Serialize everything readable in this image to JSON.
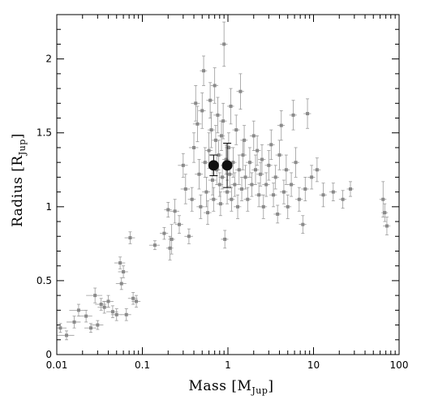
{
  "chart_data": {
    "type": "scatter",
    "x_scale": "log",
    "y_scale": "linear",
    "xlim": [
      0.01,
      100
    ],
    "ylim": [
      0,
      2.3
    ],
    "grid": false,
    "xlabel": {
      "main": "Mass [M",
      "sub": "Jup",
      "close": "]"
    },
    "ylabel": {
      "main": "Radius [R",
      "sub": "Jup",
      "close": "]"
    },
    "x_tick_labels": [
      {
        "value": 0.01,
        "label": "0.01"
      },
      {
        "value": 0.1,
        "label": "0.1"
      },
      {
        "value": 1,
        "label": "1"
      },
      {
        "value": 10,
        "label": "10"
      },
      {
        "value": 100,
        "label": "100"
      }
    ],
    "y_tick_labels": [
      {
        "value": 0,
        "label": "0"
      },
      {
        "value": 0.5,
        "label": "0.5"
      },
      {
        "value": 1,
        "label": "1"
      },
      {
        "value": 1.5,
        "label": "1.5"
      },
      {
        "value": 2,
        "label": "2"
      }
    ],
    "colors": {
      "points": "#8a8a8a",
      "errorbars": "#9a9a9a",
      "highlight": "#111111"
    },
    "series": [
      {
        "marker": "small-gray-square-with-errorbars",
        "points": [
          [
            0.011,
            0.18,
            0.002,
            0.03
          ],
          [
            0.013,
            0.13,
            0.003,
            0.03
          ],
          [
            0.016,
            0.22,
            0.003,
            0.04
          ],
          [
            0.018,
            0.3,
            0.004,
            0.04
          ],
          [
            0.022,
            0.26,
            0.004,
            0.04
          ],
          [
            0.025,
            0.18,
            0.004,
            0.03
          ],
          [
            0.028,
            0.4,
            0.006,
            0.05
          ],
          [
            0.03,
            0.2,
            0.005,
            0.03
          ],
          [
            0.033,
            0.34,
            0.005,
            0.04
          ],
          [
            0.036,
            0.32,
            0.006,
            0.04
          ],
          [
            0.04,
            0.36,
            0.006,
            0.04
          ],
          [
            0.045,
            0.29,
            0.007,
            0.04
          ],
          [
            0.05,
            0.27,
            0.007,
            0.04
          ],
          [
            0.055,
            0.62,
            0.008,
            0.04
          ],
          [
            0.06,
            0.56,
            0.008,
            0.04
          ],
          [
            0.057,
            0.48,
            0.008,
            0.04
          ],
          [
            0.065,
            0.27,
            0.009,
            0.04
          ],
          [
            0.072,
            0.79,
            0.01,
            0.04
          ],
          [
            0.078,
            0.38,
            0.01,
            0.04
          ],
          [
            0.085,
            0.36,
            0.01,
            0.04
          ],
          [
            0.14,
            0.74,
            0.02,
            0.03
          ],
          [
            0.18,
            0.82,
            0.02,
            0.04
          ],
          [
            0.21,
            0.72,
            0.02,
            0.08
          ],
          [
            0.22,
            0.78,
            0.02,
            0.1
          ],
          [
            0.2,
            0.98,
            0.02,
            0.05
          ],
          [
            0.24,
            0.97,
            0.03,
            0.08
          ],
          [
            0.27,
            0.88,
            0.03,
            0.06
          ],
          [
            0.3,
            1.28,
            0.04,
            0.08
          ],
          [
            0.32,
            1.12,
            0.04,
            0.1
          ],
          [
            0.35,
            0.8,
            0.04,
            0.05
          ],
          [
            0.38,
            1.05,
            0.04,
            0.08
          ],
          [
            0.4,
            1.4,
            0.05,
            0.1
          ],
          [
            0.42,
            1.7,
            0.05,
            0.12
          ],
          [
            0.44,
            1.56,
            0.05,
            0.12
          ],
          [
            0.46,
            1.22,
            0.05,
            0.1
          ],
          [
            0.48,
            1.0,
            0.05,
            0.08
          ],
          [
            0.5,
            1.65,
            0.05,
            0.12
          ],
          [
            0.52,
            1.92,
            0.05,
            0.1
          ],
          [
            0.54,
            1.3,
            0.05,
            0.1
          ],
          [
            0.56,
            1.1,
            0.06,
            0.1
          ],
          [
            0.58,
            0.96,
            0.06,
            0.08
          ],
          [
            0.6,
            1.38,
            0.06,
            0.12
          ],
          [
            0.62,
            1.72,
            0.06,
            0.12
          ],
          [
            0.64,
            1.52,
            0.06,
            0.12
          ],
          [
            0.66,
            1.18,
            0.07,
            0.1
          ],
          [
            0.68,
            1.05,
            0.07,
            0.08
          ],
          [
            0.7,
            1.82,
            0.07,
            0.12
          ],
          [
            0.72,
            1.45,
            0.07,
            0.1
          ],
          [
            0.74,
            1.25,
            0.07,
            0.1
          ],
          [
            0.76,
            1.62,
            0.08,
            0.12
          ],
          [
            0.78,
            1.35,
            0.08,
            0.1
          ],
          [
            0.8,
            1.15,
            0.08,
            0.08
          ],
          [
            0.82,
            1.02,
            0.08,
            0.08
          ],
          [
            0.84,
            1.48,
            0.08,
            0.1
          ],
          [
            0.86,
            1.2,
            0.08,
            0.08
          ],
          [
            0.88,
            1.58,
            0.09,
            0.12
          ],
          [
            0.9,
            2.1,
            0.09,
            0.15
          ],
          [
            0.92,
            0.78,
            0.09,
            0.06
          ],
          [
            0.95,
            1.32,
            0.09,
            0.1
          ],
          [
            0.98,
            1.1,
            0.1,
            0.08
          ],
          [
            1.02,
            1.4,
            0.1,
            0.1
          ],
          [
            1.05,
            1.22,
            0.1,
            0.08
          ],
          [
            1.08,
            1.68,
            0.1,
            0.12
          ],
          [
            1.1,
            1.05,
            0.1,
            0.08
          ],
          [
            1.15,
            1.3,
            0.11,
            0.1
          ],
          [
            1.2,
            1.15,
            0.12,
            0.08
          ],
          [
            1.25,
            1.52,
            0.12,
            0.1
          ],
          [
            1.3,
            1.0,
            0.13,
            0.08
          ],
          [
            1.35,
            1.25,
            0.13,
            0.1
          ],
          [
            1.4,
            1.78,
            0.14,
            0.12
          ],
          [
            1.45,
            1.12,
            0.14,
            0.08
          ],
          [
            1.5,
            1.35,
            0.15,
            0.1
          ],
          [
            1.55,
            1.45,
            0.15,
            0.1
          ],
          [
            1.6,
            1.2,
            0.16,
            0.08
          ],
          [
            1.7,
            1.05,
            0.17,
            0.08
          ],
          [
            1.8,
            1.3,
            0.18,
            0.1
          ],
          [
            1.9,
            1.15,
            0.19,
            0.08
          ],
          [
            2.0,
            1.48,
            0.2,
            0.1
          ],
          [
            2.1,
            1.25,
            0.21,
            0.1
          ],
          [
            2.2,
            1.38,
            0.22,
            0.1
          ],
          [
            2.3,
            1.08,
            0.23,
            0.08
          ],
          [
            2.4,
            1.22,
            0.24,
            0.08
          ],
          [
            2.5,
            1.32,
            0.25,
            0.1
          ],
          [
            2.6,
            1.0,
            0.26,
            0.08
          ],
          [
            2.8,
            1.15,
            0.28,
            0.08
          ],
          [
            3.0,
            1.28,
            0.3,
            0.1
          ],
          [
            3.2,
            1.42,
            0.32,
            0.1
          ],
          [
            3.4,
            1.08,
            0.34,
            0.08
          ],
          [
            3.6,
            1.2,
            0.36,
            0.08
          ],
          [
            3.8,
            0.95,
            0.38,
            0.06
          ],
          [
            4.0,
            1.35,
            0.4,
            0.1
          ],
          [
            4.2,
            1.55,
            0.42,
            0.1
          ],
          [
            4.5,
            1.1,
            0.45,
            0.08
          ],
          [
            4.8,
            1.25,
            0.48,
            0.1
          ],
          [
            5.0,
            1.0,
            0.5,
            0.08
          ],
          [
            5.5,
            1.15,
            0.55,
            0.08
          ],
          [
            5.8,
            1.62,
            0.58,
            0.1
          ],
          [
            6.2,
            1.3,
            0.62,
            0.1
          ],
          [
            6.8,
            1.05,
            0.68,
            0.08
          ],
          [
            7.5,
            0.88,
            0.75,
            0.06
          ],
          [
            8.0,
            1.12,
            0.8,
            0.08
          ],
          [
            8.5,
            1.63,
            0.85,
            0.1
          ],
          [
            9.5,
            1.2,
            0.95,
            0.08
          ],
          [
            11.0,
            1.25,
            1.1,
            0.08
          ],
          [
            13.0,
            1.08,
            1.3,
            0.08
          ],
          [
            17.0,
            1.1,
            1.7,
            0.06
          ],
          [
            22.0,
            1.05,
            2.2,
            0.06
          ],
          [
            27.0,
            1.12,
            2.5,
            0.05
          ],
          [
            65.0,
            1.05,
            6.0,
            0.12
          ],
          [
            68.0,
            0.96,
            6.0,
            0.06
          ],
          [
            72.0,
            0.87,
            7.0,
            0.06
          ]
        ]
      },
      {
        "marker": "large-black-circle",
        "points": [
          [
            0.68,
            1.28,
            0.08,
            0.07
          ],
          [
            0.98,
            1.28,
            0.1,
            0.15
          ]
        ]
      }
    ]
  }
}
